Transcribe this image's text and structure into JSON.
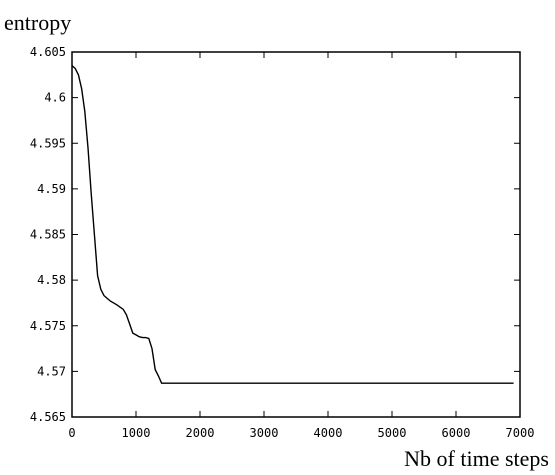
{
  "chart_data": {
    "type": "line",
    "title": "",
    "xlabel": "Nb of time steps",
    "ylabel": "entropy",
    "xlim": [
      0,
      7000
    ],
    "ylim": [
      4.565,
      4.605
    ],
    "xticks": [
      0,
      1000,
      2000,
      3000,
      4000,
      5000,
      6000,
      7000
    ],
    "xtick_labels": [
      "0",
      "1000",
      "2000",
      "3000",
      "4000",
      "5000",
      "6000",
      "7000"
    ],
    "yticks": [
      4.565,
      4.57,
      4.575,
      4.58,
      4.585,
      4.59,
      4.595,
      4.6,
      4.605
    ],
    "ytick_labels": [
      "4.565",
      "4.57",
      "4.575",
      "4.58",
      "4.585",
      "4.59",
      "4.595",
      "4.6",
      "4.605"
    ],
    "grid": false,
    "legend": "none",
    "series": [
      {
        "color": "#000000",
        "x": [
          0,
          50,
          100,
          150,
          200,
          250,
          300,
          350,
          400,
          450,
          500,
          550,
          600,
          700,
          800,
          850,
          900,
          950,
          1000,
          1050,
          1100,
          1150,
          1200,
          1250,
          1300,
          1350,
          1400,
          2000,
          3000,
          4000,
          5000,
          6000,
          6900
        ],
        "y": [
          4.6035,
          4.6032,
          4.6025,
          4.601,
          4.5985,
          4.5945,
          4.5895,
          4.585,
          4.5805,
          4.579,
          4.5783,
          4.578,
          4.5777,
          4.5773,
          4.5768,
          4.5762,
          4.5752,
          4.5742,
          4.574,
          4.5738,
          4.5737,
          4.5737,
          4.5736,
          4.5725,
          4.5702,
          4.5695,
          4.5687,
          4.5687,
          4.5687,
          4.5687,
          4.5687,
          4.5687,
          4.5687
        ]
      }
    ]
  }
}
